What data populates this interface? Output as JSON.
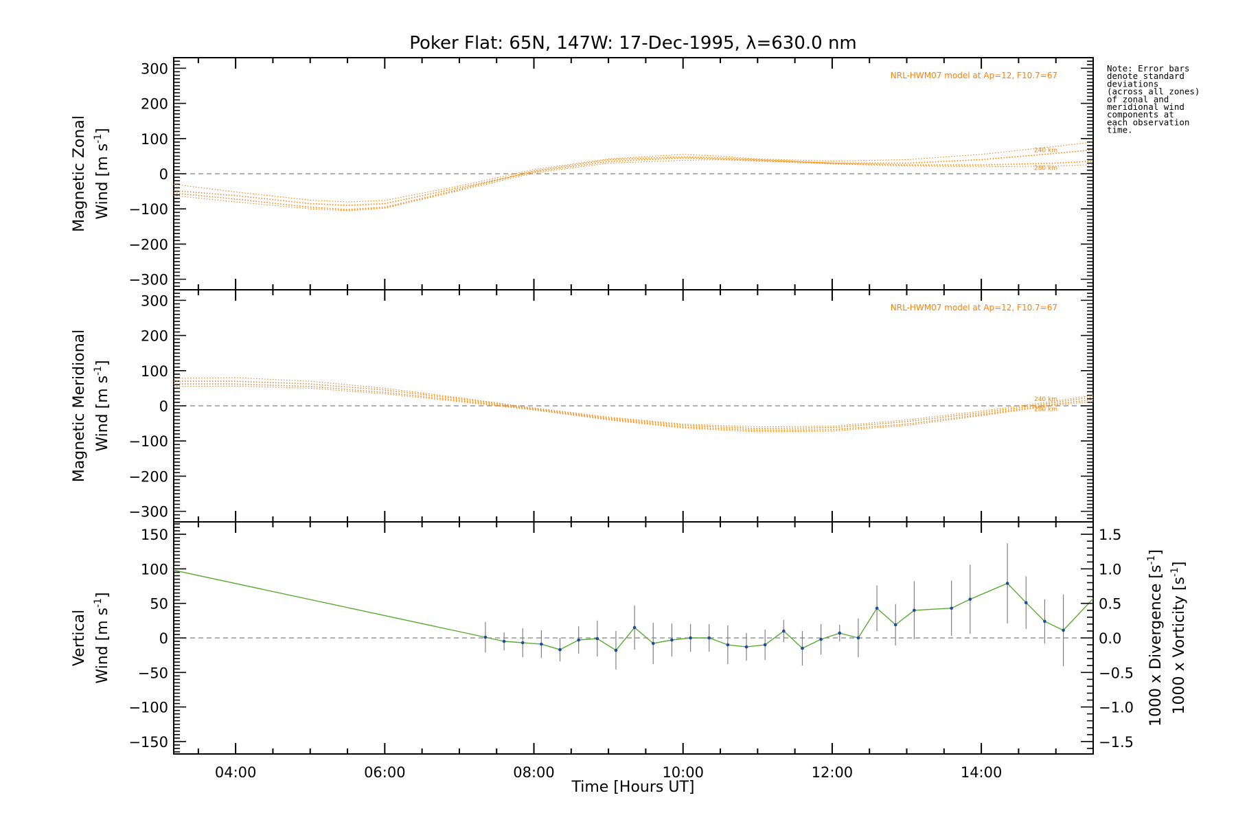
{
  "title": "Poker Flat: 65N, 147W: 17-Dec-1995, λ=630.0 nm",
  "note": "Note: Error bars denote standard deviations (across all zones) of zonal and meridional wind components at each observation time.",
  "note_lines": [
    "Note: Error bars",
    "denote standard",
    "deviations",
    "(across all zones)",
    "of zonal and",
    "meridional wind",
    "components at",
    "each observation",
    "time."
  ],
  "colors": {
    "model": "#ff7f00",
    "vertical": "#5aaa32",
    "divergence": "#4aa3d8",
    "vorticity": "#f0508c",
    "errorbar": "#808080",
    "zero_line": "#808080",
    "point": "#1e4aa0"
  },
  "chart_data": [
    {
      "type": "line",
      "panel": "zonal",
      "ylabel_line1": "Magnetic Zonal",
      "ylabel_line2": "Wind [m s",
      "ylabel_sup": "-1",
      "ylabel_end": "]",
      "ylim": [
        -330,
        330
      ],
      "yticks": [
        -300,
        -200,
        -100,
        0,
        100,
        200,
        300
      ],
      "ytick_labels": [
        "−300",
        "−200",
        "−100",
        "0",
        "100",
        "200",
        "300"
      ],
      "model_label": "NRL-HWM07 model at Ap=12, F10.7=67",
      "altitude_labels": [
        "240 km",
        "280 km"
      ],
      "series": [
        {
          "name": "240 km",
          "x": [
            3.17,
            4,
            5,
            5.5,
            6,
            7,
            8,
            9,
            10,
            10.5,
            11,
            12,
            13,
            14,
            15,
            15.5
          ],
          "values": [
            -48,
            -62,
            -85,
            -90,
            -85,
            -40,
            5,
            35,
            45,
            42,
            38,
            30,
            30,
            40,
            58,
            68
          ]
        },
        {
          "name": "280 km",
          "x": [
            3.17,
            4,
            5,
            5.5,
            6,
            7,
            8,
            9,
            10,
            10.5,
            11,
            12,
            13,
            14,
            15,
            15.5
          ],
          "values": [
            -55,
            -72,
            -95,
            -102,
            -95,
            -45,
            8,
            40,
            48,
            45,
            40,
            30,
            25,
            25,
            30,
            36
          ]
        },
        {
          "x": [
            3.17,
            4,
            5,
            5.5,
            6,
            7,
            8,
            9,
            10,
            10.5,
            11,
            12,
            13,
            14,
            15,
            15.5
          ],
          "values": [
            -30,
            -52,
            -75,
            -80,
            -76,
            -35,
            12,
            42,
            55,
            50,
            42,
            36,
            40,
            55,
            78,
            90
          ]
        },
        {
          "x": [
            3.17,
            4,
            5,
            5.5,
            6,
            7,
            8,
            9,
            10,
            10.5,
            11,
            12,
            13,
            14,
            15,
            15.5
          ],
          "values": [
            -62,
            -80,
            -100,
            -105,
            -98,
            -48,
            2,
            30,
            38,
            40,
            36,
            28,
            22,
            20,
            22,
            26
          ]
        }
      ]
    },
    {
      "type": "line",
      "panel": "meridional",
      "ylabel_line1": "Magnetic Meridional",
      "ylabel_line2": "Wind [m s",
      "ylabel_sup": "-1",
      "ylabel_end": "]",
      "ylim": [
        -330,
        330
      ],
      "yticks": [
        -300,
        -200,
        -100,
        0,
        100,
        200,
        300
      ],
      "ytick_labels": [
        "−300",
        "−200",
        "−100",
        "0",
        "100",
        "200",
        "300"
      ],
      "model_label": "NRL-HWM07 model at Ap=12, F10.7=67",
      "altitude_labels": [
        "240 km",
        "280 km"
      ],
      "series": [
        {
          "name": "240 km",
          "x": [
            3.17,
            4,
            5,
            6,
            7,
            8,
            9,
            10,
            11,
            12,
            13,
            14,
            15,
            15.5
          ],
          "values": [
            70,
            70,
            62,
            45,
            20,
            -8,
            -35,
            -55,
            -65,
            -62,
            -45,
            -20,
            10,
            25
          ]
        },
        {
          "name": "280 km",
          "x": [
            3.17,
            4,
            5,
            6,
            7,
            8,
            9,
            10,
            11,
            12,
            13,
            14,
            15,
            15.5
          ],
          "values": [
            62,
            62,
            55,
            38,
            15,
            -10,
            -38,
            -60,
            -70,
            -68,
            -52,
            -25,
            5,
            18
          ]
        },
        {
          "x": [
            3.17,
            4,
            5,
            6,
            7,
            8,
            9,
            10,
            11,
            12,
            13,
            14,
            15,
            15.5
          ],
          "values": [
            78,
            80,
            70,
            50,
            23,
            -6,
            -32,
            -52,
            -60,
            -58,
            -40,
            -15,
            14,
            30
          ]
        },
        {
          "x": [
            3.17,
            4,
            5,
            6,
            7,
            8,
            9,
            10,
            11,
            12,
            13,
            14,
            15,
            15.5
          ],
          "values": [
            55,
            56,
            50,
            34,
            12,
            -12,
            -40,
            -63,
            -74,
            -72,
            -56,
            -28,
            2,
            12
          ]
        }
      ]
    },
    {
      "type": "line",
      "panel": "vertical",
      "ylabel_line1": "Vertical",
      "ylabel_line2": "Wind [m s",
      "ylabel_sup": "-1",
      "ylabel_end": "]",
      "ylim": [
        -168,
        168
      ],
      "yticks": [
        -150,
        -100,
        -50,
        0,
        50,
        100,
        150
      ],
      "ytick_labels": [
        "−150",
        "−100",
        "−50",
        "0",
        "50",
        "100",
        "150"
      ],
      "y2label_div": "1000 x Divergence [s",
      "y2label_vort": "1000 x Vorticity [s",
      "y2label_sup": "-1",
      "y2label_end": "]",
      "y2lim": [
        -1.68,
        1.68
      ],
      "y2ticks": [
        -1.5,
        -1.0,
        -0.5,
        0.0,
        0.5,
        1.0,
        1.5
      ],
      "y2tick_labels": [
        "−1.5",
        "−1.0",
        "−0.5",
        "0.0",
        "0.5",
        "1.0",
        "1.5"
      ],
      "series": [
        {
          "x": [
            3.17,
            7.35,
            7.6,
            7.85,
            8.1,
            8.35,
            8.6,
            8.85,
            9.1,
            9.35,
            9.6,
            9.85,
            10.1,
            10.35,
            10.6,
            10.85,
            11.1,
            11.35,
            11.6,
            11.85,
            12.1,
            12.35,
            12.6,
            12.85,
            13.1,
            13.6,
            13.85,
            14.35,
            14.6,
            14.85,
            15.1,
            15.5
          ],
          "values": [
            98,
            1,
            -5,
            -7,
            -9,
            -17,
            -3,
            -1,
            -18,
            15,
            -8,
            -3,
            0,
            0,
            -10,
            -13,
            -10,
            10,
            -15,
            -2,
            7,
            0,
            43,
            19,
            40,
            43,
            56,
            79,
            51,
            24,
            11,
            57
          ],
          "err": [
            null,
            22,
            13,
            21,
            20,
            17,
            20,
            26,
            28,
            32,
            30,
            24,
            20,
            20,
            28,
            20,
            22,
            16,
            25,
            22,
            12,
            28,
            33,
            30,
            42,
            40,
            50,
            58,
            38,
            32,
            52,
            null
          ]
        }
      ]
    }
  ],
  "x_axis": {
    "xlim": [
      3.17,
      15.5
    ],
    "xticks": [
      4,
      6,
      8,
      10,
      12,
      14
    ],
    "xtick_labels": [
      "04:00",
      "06:00",
      "08:00",
      "10:00",
      "12:00",
      "14:00"
    ],
    "xlabel": "Time [Hours UT]"
  }
}
